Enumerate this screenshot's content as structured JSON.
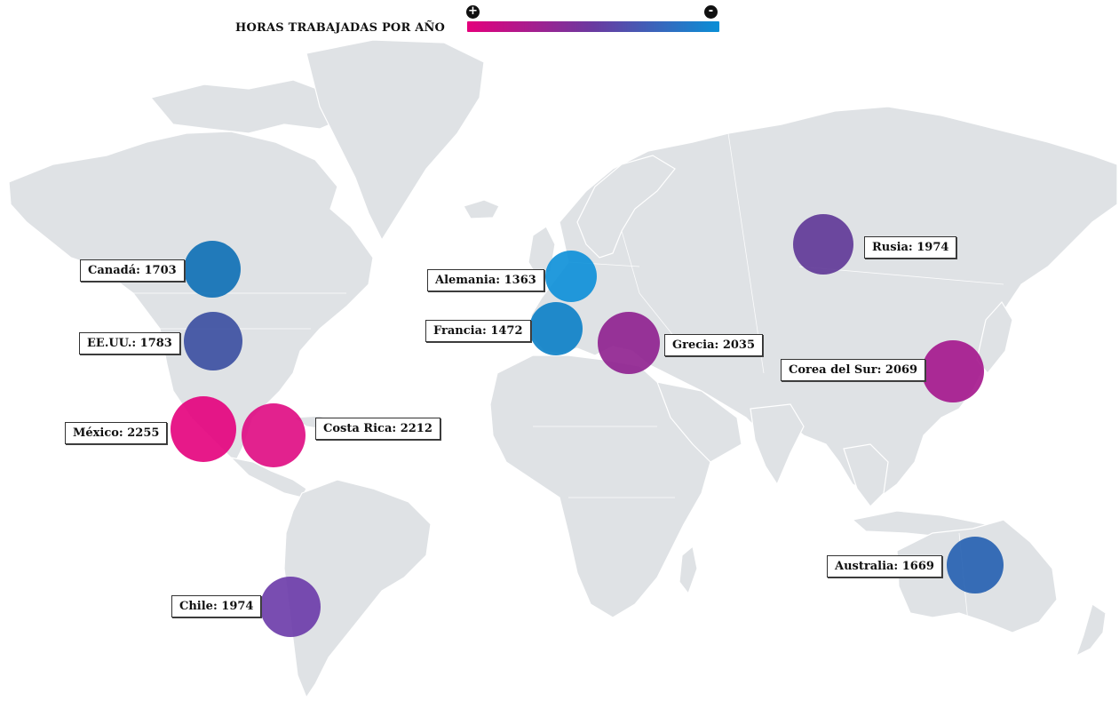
{
  "legend": {
    "title": "HORAS TRABAJADAS POR AÑO",
    "plus_sign": "+",
    "minus_sign": "-",
    "gradient_start_color": "#e4007c",
    "gradient_mid_color": "#6a3aa0",
    "gradient_end_color": "#0a8fd6"
  },
  "countries": [
    {
      "id": "canada",
      "label": "Canadá: 1703",
      "color": "#0c6fb5"
    },
    {
      "id": "eeuu",
      "label": "EE.UU.: 1783",
      "color": "#3a4ea0"
    },
    {
      "id": "mexico",
      "label": "México: 2255",
      "color": "#e4007c"
    },
    {
      "id": "costa-rica",
      "label": "Costa Rica: 2212",
      "color": "#df0a82"
    },
    {
      "id": "chile",
      "label": "Chile: 1974",
      "color": "#6a3aa8"
    },
    {
      "id": "alemania",
      "label": "Alemania: 1363",
      "color": "#0b8fd8"
    },
    {
      "id": "francia",
      "label": "Francia: 1472",
      "color": "#0a7fc6"
    },
    {
      "id": "grecia",
      "label": "Grecia: 2035",
      "color": "#8e1f8e"
    },
    {
      "id": "rusia",
      "label": "Rusia: 1974",
      "color": "#5e3696"
    },
    {
      "id": "corea-del-sur",
      "label": "Corea del Sur: 2069",
      "color": "#a4158c"
    },
    {
      "id": "australia",
      "label": "Australia: 1669",
      "color": "#245fb0"
    }
  ]
}
